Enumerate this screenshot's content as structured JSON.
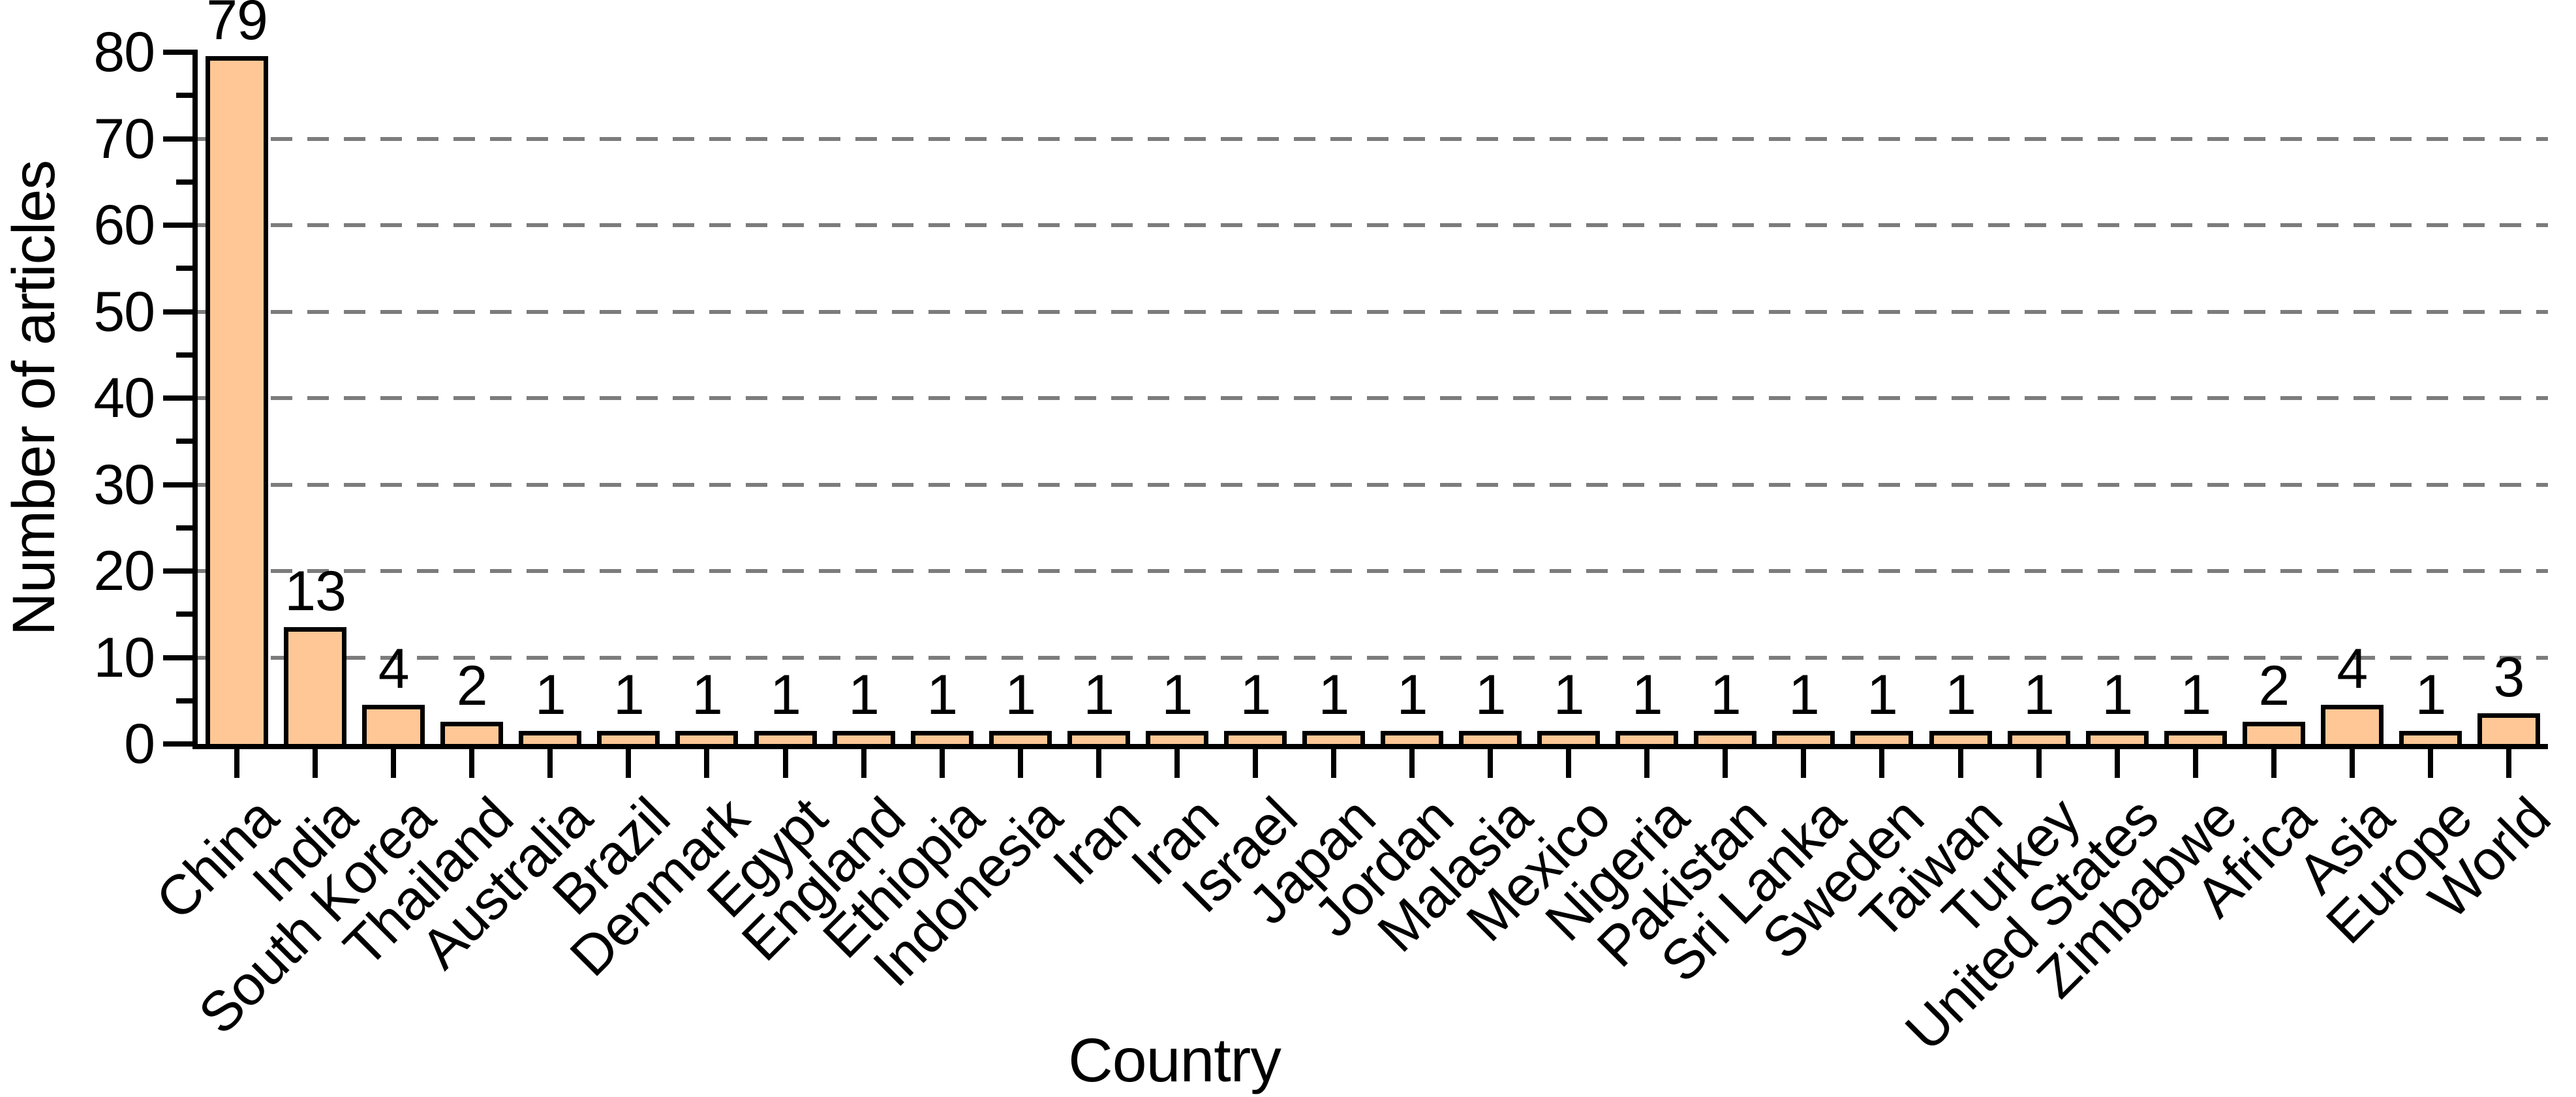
{
  "figure": {
    "background": "#ffffff",
    "text_color": "#000000"
  },
  "chart_data": {
    "type": "bar",
    "title": "",
    "xlabel": "Country",
    "ylabel": "Number of articles",
    "categories": [
      "China",
      "India",
      "South Korea",
      "Thailand",
      "Australia",
      "Brazil",
      "Denmark",
      "Egypt",
      "England",
      "Ethiopia",
      "Indonesia",
      "Iran",
      "Iran",
      "Israel",
      "Japan",
      "Jordan",
      "Malasia",
      "Mexico",
      "Nigeria",
      "Pakistan",
      "Sri Lanka",
      "Sweden",
      "Taiwan",
      "Turkey",
      "United States",
      "Zimbabwe",
      "Africa",
      "Asia",
      "Europe",
      "World"
    ],
    "values": [
      79,
      13,
      4,
      2,
      1,
      1,
      1,
      1,
      1,
      1,
      1,
      1,
      1,
      1,
      1,
      1,
      1,
      1,
      1,
      1,
      1,
      1,
      1,
      1,
      1,
      1,
      2,
      4,
      1,
      3
    ],
    "value_labels_shown": true,
    "ylim": [
      0,
      80
    ],
    "yticks": [
      0,
      10,
      20,
      30,
      40,
      50,
      60,
      70,
      80
    ],
    "minor_ytick_step": 5,
    "grid": "horizontal dashed lines at major ticks 10-70",
    "legend": "none",
    "bar_fill_color": "#FEC795",
    "bar_border_color": "#000000",
    "gridline_color": "#7c7c7c",
    "axis_color": "#000000"
  }
}
